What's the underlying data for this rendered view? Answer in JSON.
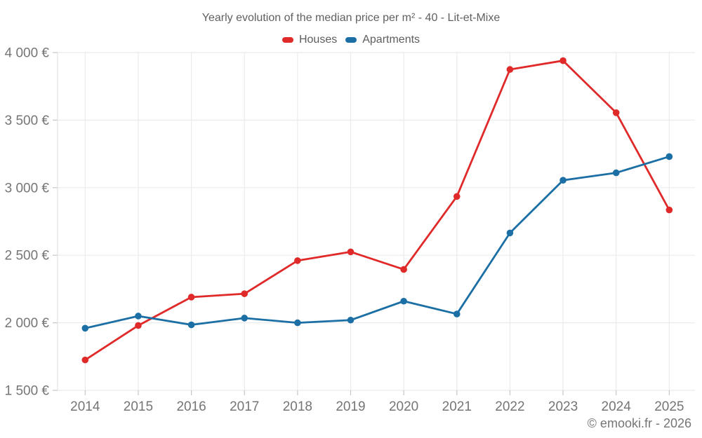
{
  "header": {
    "title": "Yearly evolution of the median price per m² - 40 - Lit-et-Mixe"
  },
  "legend": {
    "items": [
      {
        "label": "Houses",
        "color": "#e02a2a"
      },
      {
        "label": "Apartments",
        "color": "#1b6fa4"
      }
    ]
  },
  "footer": {
    "credit": "© emooki.fr - 2026"
  },
  "chart_data": {
    "type": "line",
    "title": "Yearly evolution of the median price per m² - 40 - Lit-et-Mixe",
    "categories": [
      "2014",
      "2015",
      "2016",
      "2017",
      "2018",
      "2019",
      "2020",
      "2021",
      "2022",
      "2023",
      "2024",
      "2025"
    ],
    "series": [
      {
        "name": "Houses",
        "color": "#e02a2a",
        "values": [
          1725,
          1980,
          2190,
          2215,
          2460,
          2525,
          2395,
          2935,
          3875,
          3940,
          3555,
          2835
        ]
      },
      {
        "name": "Apartments",
        "color": "#1b6fa4",
        "values": [
          1960,
          2050,
          1985,
          2035,
          2000,
          2020,
          2160,
          2065,
          2665,
          3055,
          3110,
          3230
        ]
      }
    ],
    "xlabel": "",
    "ylabel": "",
    "y_axis": {
      "min": 1500,
      "max": 4000,
      "step": 500,
      "ticks": [
        {
          "value": 1500,
          "label": "1 500 €"
        },
        {
          "value": 2000,
          "label": "2 000 €"
        },
        {
          "value": 2500,
          "label": "2 500 €"
        },
        {
          "value": 3000,
          "label": "3 000 €"
        },
        {
          "value": 3500,
          "label": "3 500 €"
        },
        {
          "value": 4000,
          "label": "4 000 €"
        }
      ]
    },
    "grid": true,
    "legend_position": "top",
    "unit": "€"
  }
}
